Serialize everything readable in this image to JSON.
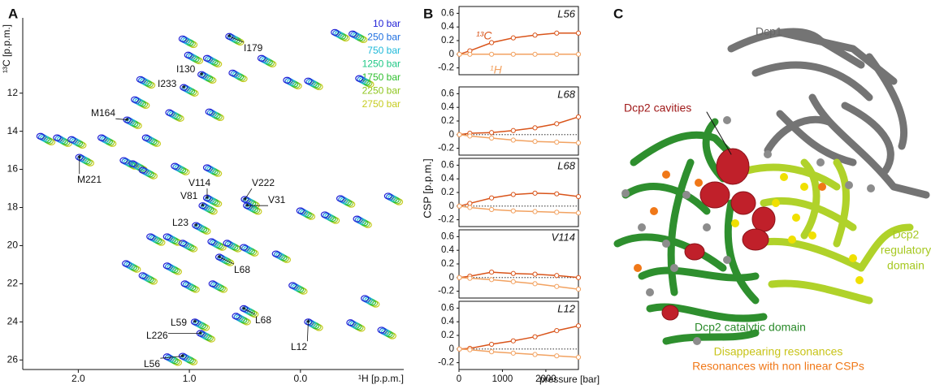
{
  "panels": {
    "a": "A",
    "b": "B",
    "c": "C"
  },
  "spectrum": {
    "xlabel": "¹H [p.p.m.]",
    "ylabel": "¹³C [p.p.m.]",
    "xlim": [
      2.5,
      -0.93
    ],
    "ylim": [
      8.05,
      26.5
    ],
    "xticks": [
      {
        "value": 2,
        "label": "2.0"
      },
      {
        "value": 1,
        "label": "1.0"
      },
      {
        "value": 0,
        "label": "0.0"
      }
    ],
    "yticks": [
      12,
      14,
      16,
      18,
      20,
      22,
      24,
      26
    ],
    "legend": [
      {
        "name": "10 bar",
        "color": "#1f1fd6"
      },
      {
        "name": "250 bar",
        "color": "#1f6fe0"
      },
      {
        "name": "750 bar",
        "color": "#1fb9d9"
      },
      {
        "name": "1250 bar",
        "color": "#1fc885"
      },
      {
        "name": "1750 bar",
        "color": "#2fbf2f"
      },
      {
        "name": "2250 bar",
        "color": "#8fc61f"
      },
      {
        "name": "2750 bar",
        "color": "#c6cc1f"
      }
    ],
    "assignments": [
      {
        "label": "I179",
        "x": 0.64,
        "y": 9.02
      },
      {
        "label": "I130",
        "x": 0.89,
        "y": 11.02
      },
      {
        "label": "I233",
        "x": 1.05,
        "y": 11.7
      },
      {
        "label": "M164",
        "x": 1.56,
        "y": 13.4
      },
      {
        "label": "M221",
        "x": 1.99,
        "y": 15.36
      },
      {
        "label": "V114",
        "x": 0.84,
        "y": 17.5
      },
      {
        "label": "V222",
        "x": 0.5,
        "y": 17.57
      },
      {
        "label": "V31",
        "x": 0.48,
        "y": 17.9
      },
      {
        "label": "V81",
        "x": 0.88,
        "y": 17.9
      },
      {
        "label": "L23",
        "x": 0.94,
        "y": 18.94
      },
      {
        "label": "L68",
        "x": 0.73,
        "y": 20.6
      },
      {
        "label": "L68",
        "x": 0.51,
        "y": 23.3
      },
      {
        "label": "L12",
        "x": -0.07,
        "y": 24.0
      },
      {
        "label": "L59",
        "x": 0.95,
        "y": 24.0
      },
      {
        "label": "L226",
        "x": 0.9,
        "y": 24.6
      },
      {
        "label": "L56",
        "x": 1.06,
        "y": 25.8
      }
    ],
    "peaks": [
      {
        "x": -0.31,
        "y": 8.81
      },
      {
        "x": -0.47,
        "y": 8.89
      },
      {
        "x": 1.06,
        "y": 9.15
      },
      {
        "x": 1.01,
        "y": 10.0
      },
      {
        "x": 0.84,
        "y": 10.17
      },
      {
        "x": 0.35,
        "y": 10.17
      },
      {
        "x": 0.61,
        "y": 10.94
      },
      {
        "x": 1.44,
        "y": 11.28
      },
      {
        "x": 0.12,
        "y": 11.32
      },
      {
        "x": -0.07,
        "y": 11.36
      },
      {
        "x": -0.53,
        "y": 11.23
      },
      {
        "x": 1.49,
        "y": 12.34
      },
      {
        "x": 0.82,
        "y": 12.98
      },
      {
        "x": 1.18,
        "y": 13.02
      },
      {
        "x": 2.34,
        "y": 14.26
      },
      {
        "x": 2.19,
        "y": 14.34
      },
      {
        "x": 2.06,
        "y": 14.43
      },
      {
        "x": 1.79,
        "y": 14.34
      },
      {
        "x": 1.39,
        "y": 14.34
      },
      {
        "x": 1.59,
        "y": 15.53
      },
      {
        "x": 1.51,
        "y": 15.7
      },
      {
        "x": 1.42,
        "y": 16.04
      },
      {
        "x": 1.13,
        "y": 15.83
      },
      {
        "x": 0.84,
        "y": 15.91
      },
      {
        "x": -0.36,
        "y": 17.53
      },
      {
        "x": -0.79,
        "y": 17.4
      },
      {
        "x": 0.0,
        "y": 18.17
      },
      {
        "x": -0.22,
        "y": 18.38
      },
      {
        "x": -0.51,
        "y": 18.6
      },
      {
        "x": 1.35,
        "y": 19.53
      },
      {
        "x": 1.2,
        "y": 19.53
      },
      {
        "x": 1.06,
        "y": 19.87
      },
      {
        "x": 0.8,
        "y": 19.79
      },
      {
        "x": 0.66,
        "y": 19.87
      },
      {
        "x": 0.51,
        "y": 20.09
      },
      {
        "x": 1.2,
        "y": 21.06
      },
      {
        "x": 1.57,
        "y": 20.94
      },
      {
        "x": 1.42,
        "y": 21.57
      },
      {
        "x": 1.04,
        "y": 22.0
      },
      {
        "x": 0.79,
        "y": 22.0
      },
      {
        "x": 0.22,
        "y": 20.43
      },
      {
        "x": 0.07,
        "y": 22.09
      },
      {
        "x": 0.58,
        "y": 23.7
      },
      {
        "x": -0.45,
        "y": 24.04
      },
      {
        "x": -0.73,
        "y": 24.43
      },
      {
        "x": -0.58,
        "y": 22.77
      },
      {
        "x": 1.2,
        "y": 25.83
      }
    ]
  },
  "panel_b": {
    "ylabel": "CSP [p.p.m.]",
    "xlabel": "pressure [bar]"
  },
  "chart_data": [
    {
      "type": "line",
      "title": "L56",
      "x": [
        10,
        250,
        750,
        1250,
        1750,
        2250,
        2750
      ],
      "xlim": [
        0,
        2750
      ],
      "ylim": [
        -0.3,
        0.7
      ],
      "yticks": [
        -0.2,
        0,
        0.2,
        0.4,
        0.6
      ],
      "series": [
        {
          "name": "¹³C",
          "color": "#d9541a",
          "values": [
            0,
            0.05,
            0.17,
            0.24,
            0.28,
            0.31,
            0.31
          ]
        },
        {
          "name": "¹H",
          "color": "#f2a261",
          "values": [
            0,
            0,
            0,
            0,
            0,
            0,
            0
          ]
        }
      ]
    },
    {
      "type": "line",
      "title": "L68",
      "x": [
        10,
        250,
        750,
        1250,
        1750,
        2250,
        2750
      ],
      "xlim": [
        0,
        2750
      ],
      "ylim": [
        -0.3,
        0.7
      ],
      "yticks": [
        -0.2,
        0,
        0.2,
        0.4,
        0.6
      ],
      "series": [
        {
          "color": "#d9541a",
          "values": [
            0,
            0.02,
            0.03,
            0.06,
            0.1,
            0.16,
            0.26
          ]
        },
        {
          "color": "#f2a261",
          "values": [
            0,
            -0.02,
            -0.05,
            -0.08,
            -0.1,
            -0.11,
            -0.12
          ]
        }
      ]
    },
    {
      "type": "line",
      "title": "L68",
      "x": [
        10,
        250,
        750,
        1250,
        1750,
        2250,
        2750
      ],
      "xlim": [
        0,
        2750
      ],
      "ylim": [
        -0.3,
        0.7
      ],
      "yticks": [
        -0.2,
        0,
        0.2,
        0.4,
        0.6
      ],
      "series": [
        {
          "color": "#d9541a",
          "values": [
            0,
            0.04,
            0.12,
            0.17,
            0.19,
            0.18,
            0.14
          ]
        },
        {
          "color": "#f2a261",
          "values": [
            0,
            -0.02,
            -0.05,
            -0.07,
            -0.08,
            -0.09,
            -0.1
          ]
        }
      ]
    },
    {
      "type": "line",
      "title": "V114",
      "x": [
        10,
        250,
        750,
        1250,
        1750,
        2250,
        2750
      ],
      "xlim": [
        0,
        2750
      ],
      "ylim": [
        -0.3,
        0.7
      ],
      "yticks": [
        -0.2,
        0,
        0.2,
        0.4,
        0.6
      ],
      "series": [
        {
          "color": "#d9541a",
          "values": [
            0,
            0.02,
            0.08,
            0.06,
            0.05,
            0.03,
            0.0
          ]
        },
        {
          "color": "#f2a261",
          "values": [
            0,
            -0.01,
            -0.03,
            -0.06,
            -0.09,
            -0.13,
            -0.17
          ]
        }
      ]
    },
    {
      "type": "line",
      "title": "L12",
      "x": [
        10,
        250,
        750,
        1250,
        1750,
        2250,
        2750
      ],
      "xlim": [
        0,
        2750
      ],
      "ylim": [
        -0.3,
        0.7
      ],
      "yticks": [
        -0.2,
        0,
        0.2,
        0.4,
        0.6
      ],
      "xticks": [
        0,
        1000,
        2000
      ],
      "series": [
        {
          "color": "#d9541a",
          "values": [
            0,
            0.01,
            0.07,
            0.12,
            0.18,
            0.27,
            0.34
          ]
        },
        {
          "color": "#f2a261",
          "values": [
            0,
            -0.01,
            -0.04,
            -0.06,
            -0.08,
            -0.1,
            -0.12
          ]
        }
      ]
    }
  ],
  "structure": {
    "dcp1": "Dcp1",
    "cavities": "Dcp2 cavities",
    "catalytic": "Dcp2 catalytic domain",
    "regulatory": [
      "Dcp2",
      "regulatory",
      "domain"
    ],
    "legend": [
      "Disappearing resonances",
      "Resonances with non linear CSPs"
    ]
  }
}
